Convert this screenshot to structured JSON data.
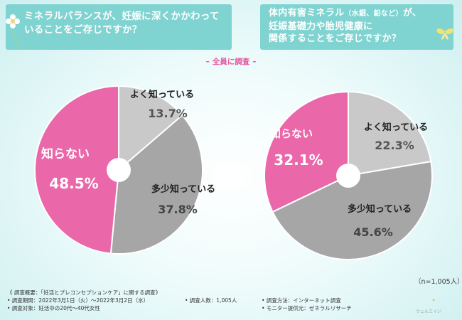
{
  "questions": {
    "left": "ミネラルバランスが、妊娠に深くかかわっていることをご存じですか？",
    "right_line1_a": "体内有害ミネラル",
    "right_line1_paren": "（水銀、鉛など）",
    "right_line1_b": "が、",
    "right_line2": "妊娠基礎力や胎児健康に",
    "right_line3": "関係することをご存じですか？"
  },
  "survey_tag": "全員に調査",
  "chart_data": [
    {
      "type": "pie",
      "title": "ミネラルバランスが、妊娠に深くかかわっていることをご存じですか？",
      "categories": [
        "よく知っている",
        "多少知っている",
        "知らない"
      ],
      "values": [
        13.7,
        37.8,
        48.5
      ],
      "unit": "%",
      "value_labels": [
        "13.7%",
        "37.8%",
        "48.5%"
      ],
      "colors": [
        "#c9c9c9",
        "#a6a6a6",
        "#ea68aa"
      ]
    },
    {
      "type": "pie",
      "title": "体内有害ミネラル（水銀、鉛など）が、妊娠基礎力や胎児健康に関係することをご存じですか？",
      "categories": [
        "よく知っている",
        "多少知っている",
        "知らない"
      ],
      "values": [
        22.3,
        45.6,
        32.1
      ],
      "unit": "%",
      "value_labels": [
        "22.3%",
        "45.6%",
        "32.1%"
      ],
      "colors": [
        "#c9c9c9",
        "#a6a6a6",
        "#ea68aa"
      ]
    }
  ],
  "n_label": "（n=1,005人）",
  "footnote": {
    "header": "《 調査概要：「妊活とプレコンセプションケア」に関する調査》",
    "period": "• 調査期間：2022年3月1日（火）～2022年3月2日（水）",
    "people": "• 調査人数：1,005人",
    "method": "• 調査方法：インターネット調査",
    "target": "• 調査対象：妊活中の20代～40代女性",
    "provider": "• モニター提供元：ゼネラルリサーチ"
  },
  "logo_text": "ウェルエイジ"
}
